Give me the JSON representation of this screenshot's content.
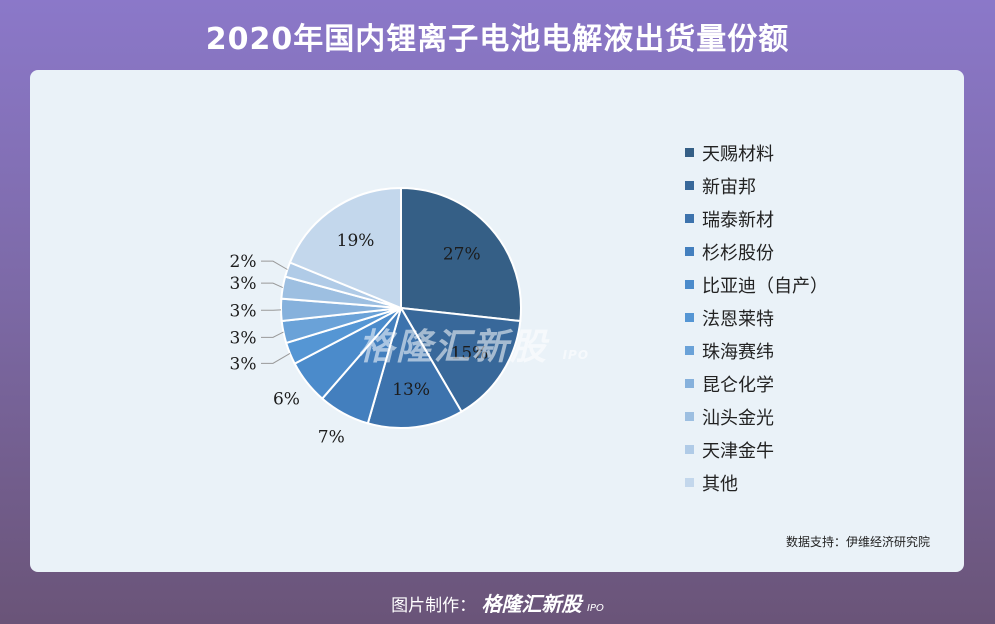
{
  "header": {
    "title": "2020年国内锂离子电池电解液出货量份额"
  },
  "chart_data": {
    "type": "pie",
    "title": "2020年国内锂离子电池电解液出货量份额",
    "slices": [
      {
        "label": "天赐材料",
        "value": 27,
        "display": "27%",
        "color": "#355f86"
      },
      {
        "label": "新宙邦",
        "value": 15,
        "display": "15%",
        "color": "#38689a"
      },
      {
        "label": "瑞泰新材",
        "value": 13,
        "display": "13%",
        "color": "#3d73ad"
      },
      {
        "label": "杉杉股份",
        "value": 7,
        "display": "7%",
        "color": "#437fbe"
      },
      {
        "label": "比亚迪（自产）",
        "value": 6,
        "display": "6%",
        "color": "#4b8bcb"
      },
      {
        "label": "法恩莱特",
        "value": 3,
        "display": "3%",
        "color": "#5596d4"
      },
      {
        "label": "珠海赛纬",
        "value": 3,
        "display": "3%",
        "color": "#6aa2d8"
      },
      {
        "label": "昆仑化学",
        "value": 3,
        "display": "3%",
        "color": "#86b1dc"
      },
      {
        "label": "汕头金光",
        "value": 3,
        "display": "3%",
        "color": "#9dbfe1"
      },
      {
        "label": "天津金牛",
        "value": 2,
        "display": "2%",
        "color": "#b0cbe7"
      },
      {
        "label": "其他",
        "value": 19,
        "display": "19%",
        "color": "#c3d7ec"
      }
    ],
    "legend_position": "right"
  },
  "source": "数据支持：伊维经济研究院",
  "watermark": {
    "text": "格隆汇新股",
    "sub": "IPO"
  },
  "footer": {
    "prefix": "图片制作：",
    "brand": "格隆汇新股",
    "sub": "IPO"
  }
}
